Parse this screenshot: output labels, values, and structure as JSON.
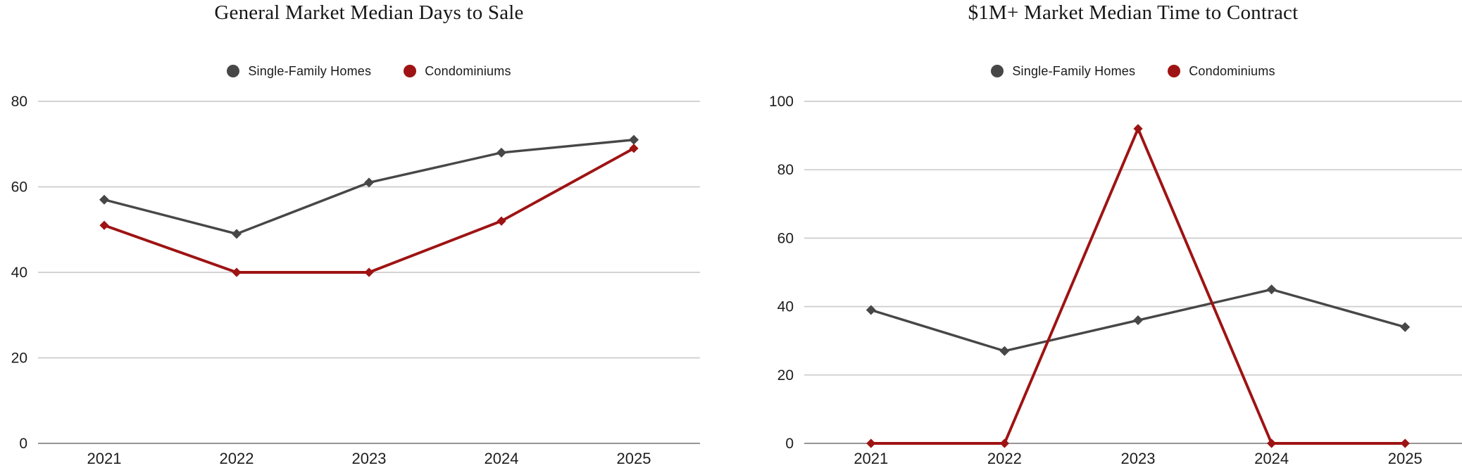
{
  "chart_data": [
    {
      "type": "line",
      "title": "General Market Median Days to Sale",
      "categories": [
        "2021",
        "2022",
        "2023",
        "2024",
        "2025"
      ],
      "series": [
        {
          "name": "Single-Family Homes",
          "color": "#474747",
          "values": [
            57,
            49,
            61,
            68,
            71
          ]
        },
        {
          "name": "Condominiums",
          "color": "#9e1313",
          "values": [
            51,
            40,
            40,
            52,
            69
          ]
        }
      ],
      "xlabel": "",
      "ylabel": "",
      "ylim": [
        0,
        80
      ],
      "yticks": [
        0,
        20,
        40,
        60,
        80
      ],
      "grid": true,
      "legend_position": "top",
      "marker": "diamond"
    },
    {
      "type": "line",
      "title": "$1M+ Market Median Time to Contract",
      "categories": [
        "2021",
        "2022",
        "2023",
        "2024",
        "2025"
      ],
      "series": [
        {
          "name": "Single-Family Homes",
          "color": "#474747",
          "values": [
            39,
            27,
            36,
            45,
            34
          ]
        },
        {
          "name": "Condominiums",
          "color": "#9e1313",
          "values": [
            0,
            0,
            92,
            0,
            0
          ]
        }
      ],
      "xlabel": "",
      "ylabel": "",
      "ylim": [
        0,
        100
      ],
      "yticks": [
        0,
        20,
        40,
        60,
        80,
        100
      ],
      "grid": true,
      "legend_position": "top",
      "marker": "diamond"
    }
  ],
  "colors": {
    "single_family": "#474747",
    "condominiums": "#9e1313",
    "gridline": "#cdcdcd",
    "axis_line": "#969696",
    "text": "#1d1d1d"
  }
}
